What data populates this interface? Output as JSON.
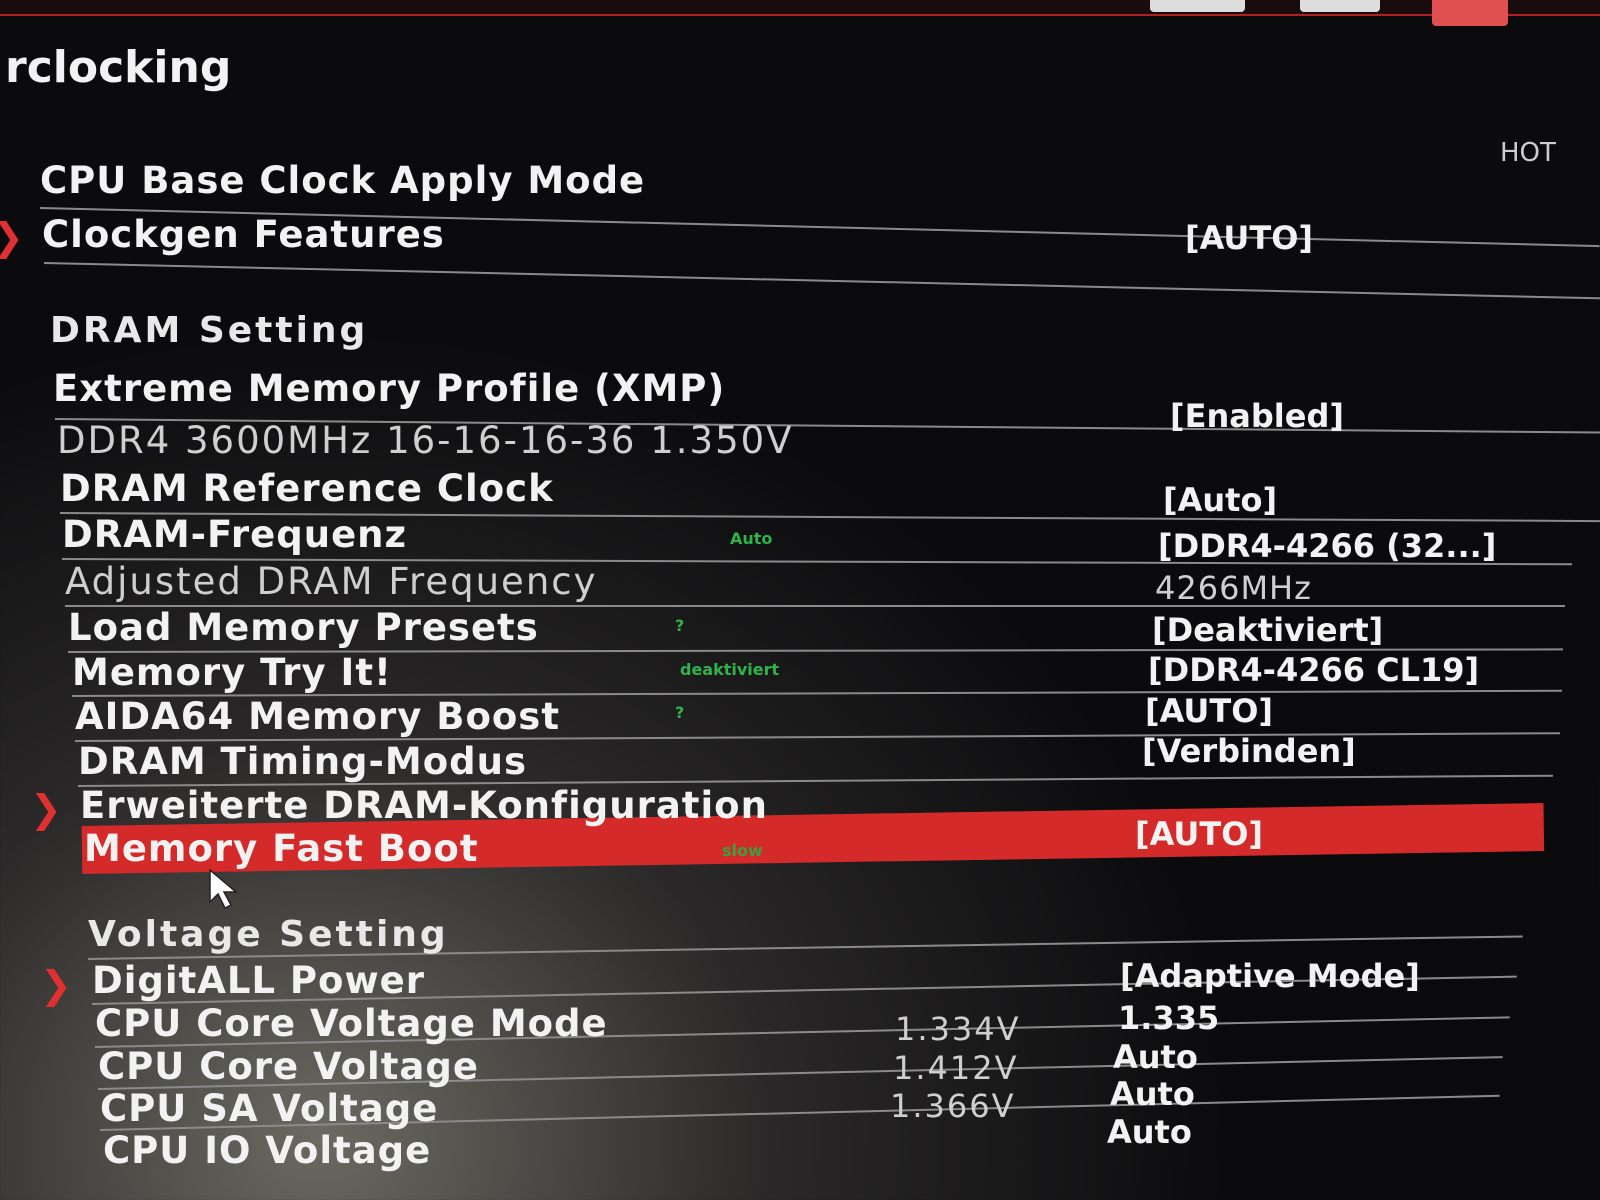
{
  "title": "rclocking",
  "hotkey_label": "HOT",
  "rows": [
    {
      "label": "CPU Base Clock Apply Mode",
      "value": "[AUTO]"
    },
    {
      "label": "Clockgen Features"
    },
    {
      "label": "DRAM Setting"
    },
    {
      "label": "Extreme Memory Profile (XMP)",
      "value": "[Enabled]"
    },
    {
      "label": "DDR4 3600MHz 16-16-16-36 1.350V"
    },
    {
      "label": "DRAM Reference Clock",
      "value": "[Auto]"
    },
    {
      "label": "DRAM-Frequenz",
      "value": "[DDR4-4266 (32...]",
      "note": "Auto"
    },
    {
      "label": "Adjusted DRAM Frequency",
      "value": "4266MHz"
    },
    {
      "label": "Load Memory Presets",
      "value": "[Deaktiviert]",
      "note": "?"
    },
    {
      "label": "Memory Try It!",
      "value": "[DDR4-4266 CL19]",
      "note": "deaktiviert"
    },
    {
      "label": "AIDA64 Memory Boost",
      "value": "[AUTO]",
      "note": "?"
    },
    {
      "label": "DRAM Timing-Modus",
      "value": "[Verbinden]"
    },
    {
      "label": "Erweiterte DRAM-Konfiguration"
    },
    {
      "label": "Memory Fast Boot",
      "value": "[AUTO]",
      "note": "slow"
    },
    {
      "label": "Voltage Setting"
    },
    {
      "label": "DigitALL Power",
      "value": "[Adaptive Mode]"
    },
    {
      "label": "CPU Core Voltage Mode",
      "reading": "1.334V",
      "value": "1.335"
    },
    {
      "label": "CPU Core Voltage",
      "reading": "1.412V",
      "value": "Auto"
    },
    {
      "label": "CPU SA Voltage",
      "reading": "1.366V",
      "value": "Auto"
    },
    {
      "label": "CPU IO Voltage",
      "value": "Auto"
    }
  ],
  "colors": {
    "highlight": "#d42a2a",
    "accent": "#e03030",
    "note": "#2fb34a"
  }
}
